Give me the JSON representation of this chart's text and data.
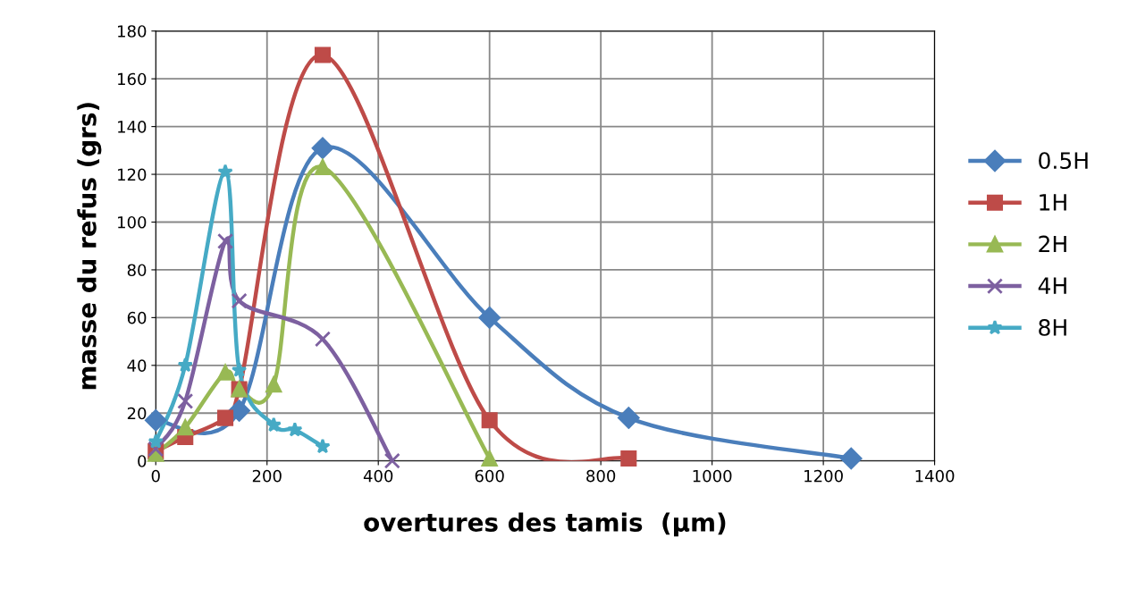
{
  "chart_data": {
    "type": "line",
    "xlabel": "overtures des tamis  (μm)",
    "ylabel": "masse du refus (grs)",
    "xlim": [
      0,
      1400
    ],
    "xticks": [
      0,
      200,
      400,
      600,
      800,
      1000,
      1200,
      1400
    ],
    "ylim": [
      0,
      180
    ],
    "yticks": [
      0,
      20,
      40,
      60,
      80,
      100,
      120,
      140,
      160,
      180
    ],
    "grid": true,
    "legend": "right",
    "series": [
      {
        "name": "0.5H",
        "color": "#4a7ebb",
        "marker": "diamond",
        "x": [
          0,
          150,
          300,
          600,
          850,
          1250
        ],
        "values": [
          17,
          21,
          131,
          60,
          18,
          1
        ]
      },
      {
        "name": "1H",
        "color": "#be4b48",
        "marker": "square",
        "x": [
          0,
          53,
          125,
          150,
          300,
          600,
          850
        ],
        "values": [
          4,
          10,
          18,
          30,
          170,
          17,
          1
        ]
      },
      {
        "name": "2H",
        "color": "#98b954",
        "marker": "triangle",
        "x": [
          0,
          53,
          125,
          150,
          212,
          300,
          600
        ],
        "values": [
          3,
          14,
          37,
          30,
          32,
          123,
          1
        ]
      },
      {
        "name": "4H",
        "color": "#7d60a0",
        "marker": "cross",
        "x": [
          0,
          53,
          125,
          150,
          300,
          425
        ],
        "values": [
          5,
          25,
          92,
          67,
          51,
          0
        ]
      },
      {
        "name": "8H",
        "color": "#46aac5",
        "marker": "star",
        "x": [
          0,
          53,
          125,
          150,
          212,
          250,
          300
        ],
        "values": [
          8,
          40,
          121,
          38,
          15,
          13,
          6
        ]
      }
    ]
  }
}
